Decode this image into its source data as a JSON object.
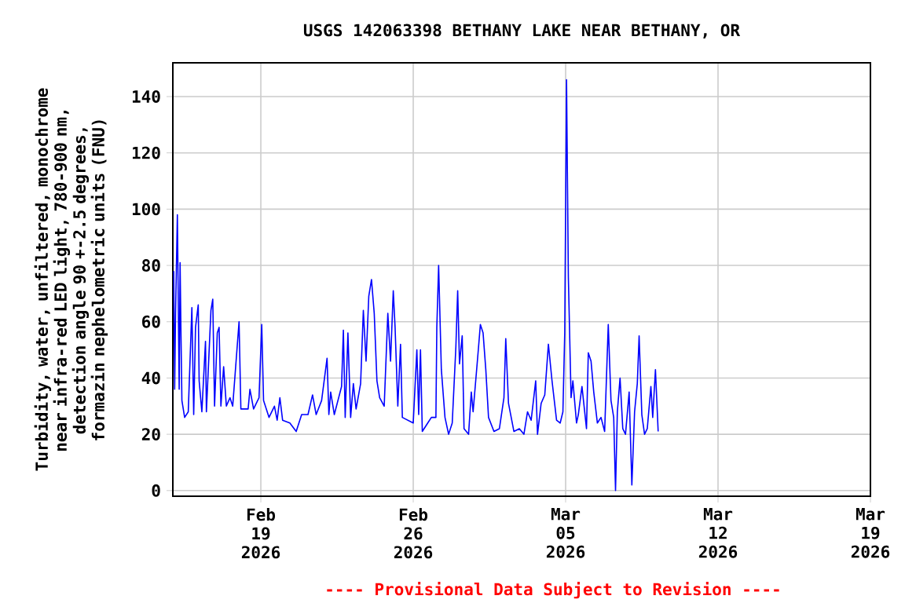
{
  "chart_data": {
    "type": "line",
    "title": "USGS 142063398 BETHANY LAKE NEAR BETHANY, OR",
    "ylabel": "Turbidity, water, unfiltered, monochrome near infra-red LED light, 780-900 nm, detection angle 90 +-2.5 degrees, formazin nephelometric units (FNU)",
    "annotations": [
      "---- Provisional Data Subject to Revision ----"
    ],
    "x": [
      "2026-02-15T00:00",
      "2026-02-15T01:00",
      "2026-02-15T02:00",
      "2026-02-15T04:00",
      "2026-02-15T06:00",
      "2026-02-15T07:00",
      "2026-02-15T08:00",
      "2026-02-15T09:00",
      "2026-02-15T12:00",
      "2026-02-15T16:00",
      "2026-02-15T20:00",
      "2026-02-15T22:00",
      "2026-02-16T00:00",
      "2026-02-16T03:00",
      "2026-02-16T04:00",
      "2026-02-16T07:00",
      "2026-02-16T11:00",
      "2026-02-16T12:00",
      "2026-02-16T17:00",
      "2026-02-16T19:00",
      "2026-02-16T21:00",
      "2026-02-17T00:00",
      "2026-02-17T02:00",
      "2026-02-17T04:00",
      "2026-02-17T07:00",
      "2026-02-17T10:00",
      "2026-02-17T14:00",
      "2026-02-17T17:00",
      "2026-02-18T00:00",
      "2026-02-18T02:00",
      "2026-02-18T10:00",
      "2026-02-18T12:00",
      "2026-02-18T16:00",
      "2026-02-18T22:00",
      "2026-02-19T01:00",
      "2026-02-19T03:00",
      "2026-02-19T09:00",
      "2026-02-19T15:00",
      "2026-02-19T18:00",
      "2026-02-19T21:00",
      "2026-02-20T00:00",
      "2026-02-20T08:00",
      "2026-02-20T15:00",
      "2026-02-20T21:00",
      "2026-02-21T04:00",
      "2026-02-21T09:00",
      "2026-02-21T13:00",
      "2026-02-21T19:00",
      "2026-02-22T01:00",
      "2026-02-22T03:00",
      "2026-02-22T05:00",
      "2026-02-22T09:00",
      "2026-02-22T17:00",
      "2026-02-22T19:00",
      "2026-02-22T21:00",
      "2026-02-23T00:00",
      "2026-02-23T03:00",
      "2026-02-23T06:00",
      "2026-02-23T09:00",
      "2026-02-23T14:00",
      "2026-02-23T17:00",
      "2026-02-23T20:00",
      "2026-02-23T23:00",
      "2026-02-24T02:00",
      "2026-02-24T05:00",
      "2026-02-24T08:00",
      "2026-02-24T11:00",
      "2026-02-24T16:00",
      "2026-02-24T20:00",
      "2026-02-24T23:00",
      "2026-02-25T02:00",
      "2026-02-25T04:00",
      "2026-02-25T07:00",
      "2026-02-25T10:00",
      "2026-02-25T12:00",
      "2026-02-25T18:00",
      "2026-02-26T00:00",
      "2026-02-26T04:00",
      "2026-02-26T06:00",
      "2026-02-26T08:00",
      "2026-02-26T10:00",
      "2026-02-26T16:00",
      "2026-02-26T20:00",
      "2026-02-27T01:00",
      "2026-02-27T02:00",
      "2026-02-27T04:00",
      "2026-02-27T07:00",
      "2026-02-27T11:00",
      "2026-02-27T15:00",
      "2026-02-27T19:00",
      "2026-02-27T23:00",
      "2026-02-28T01:00",
      "2026-02-28T03:00",
      "2026-02-28T06:00",
      "2026-02-28T08:00",
      "2026-02-28T13:00",
      "2026-02-28T16:00",
      "2026-02-28T18:00",
      "2026-03-01T00:00",
      "2026-03-01T02:00",
      "2026-03-01T05:00",
      "2026-03-01T08:00",
      "2026-03-01T11:00",
      "2026-03-01T17:00",
      "2026-03-01T23:00",
      "2026-03-02T04:00",
      "2026-03-02T06:00",
      "2026-03-02T09:00",
      "2026-03-02T12:00",
      "2026-03-02T15:00",
      "2026-03-02T21:00",
      "2026-03-03T02:00",
      "2026-03-03T06:00",
      "2026-03-03T10:00",
      "2026-03-03T15:00",
      "2026-03-03T17:00",
      "2026-03-03T21:00",
      "2026-03-04T01:00",
      "2026-03-04T05:00",
      "2026-03-04T09:00",
      "2026-03-04T14:00",
      "2026-03-04T18:00",
      "2026-03-04T21:00",
      "2026-03-04T23:00",
      "2026-03-05T01:00",
      "2026-03-05T03:00",
      "2026-03-05T06:00",
      "2026-03-05T08:00",
      "2026-03-05T12:00",
      "2026-03-05T14:00",
      "2026-03-05T18:00",
      "2026-03-05T23:00",
      "2026-03-06T01:00",
      "2026-03-06T04:00",
      "2026-03-06T07:00",
      "2026-03-06T11:00",
      "2026-03-06T15:00",
      "2026-03-06T19:00",
      "2026-03-06T23:00",
      "2026-03-07T02:00",
      "2026-03-07T05:00",
      "2026-03-07T07:00",
      "2026-03-07T09:00",
      "2026-03-07T12:00",
      "2026-03-07T15:00",
      "2026-03-07T18:00",
      "2026-03-07T22:00",
      "2026-03-08T01:00",
      "2026-03-08T04:00",
      "2026-03-08T07:00",
      "2026-03-08T09:00",
      "2026-03-08T12:00",
      "2026-03-08T15:00",
      "2026-03-08T18:00",
      "2026-03-08T22:00",
      "2026-03-09T00:00",
      "2026-03-09T03:00",
      "2026-03-09T06:00"
    ],
    "values": [
      78,
      36,
      63,
      98,
      36,
      81,
      55,
      32,
      26,
      28,
      65,
      27,
      58,
      66,
      39,
      28,
      53,
      28,
      64,
      68,
      30,
      56,
      58,
      30,
      44,
      30,
      33,
      30,
      60,
      29,
      29,
      36,
      29,
      33,
      59,
      32,
      26,
      30,
      25,
      33,
      25,
      24,
      21,
      27,
      27,
      34,
      27,
      32,
      47,
      27,
      35,
      27,
      37,
      57,
      26,
      56,
      26,
      38,
      29,
      38,
      64,
      46,
      69,
      75,
      63,
      39,
      33,
      30,
      63,
      46,
      71,
      58,
      30,
      52,
      26,
      25,
      24,
      50,
      27,
      50,
      21,
      24,
      26,
      26,
      58,
      80,
      43,
      26,
      20,
      24,
      51,
      71,
      45,
      55,
      22,
      20,
      35,
      28,
      51,
      59,
      56,
      43,
      26,
      21,
      22,
      33,
      54,
      31,
      26,
      21,
      22,
      20,
      28,
      25,
      39,
      20,
      31,
      34,
      52,
      39,
      25,
      24,
      28,
      56,
      146,
      76,
      33,
      39,
      24,
      27,
      37,
      22,
      49,
      46,
      35,
      24,
      26,
      21,
      59,
      32,
      26,
      0,
      28,
      40,
      22,
      20,
      35,
      2,
      28,
      38,
      55,
      27,
      20,
      22,
      37,
      26,
      43,
      21
    ],
    "color": "#0000ff",
    "line_style": "solid",
    "xlim": [
      "2026-02-14T23:00",
      "2026-03-19T00:00"
    ],
    "ylim": [
      -2,
      152
    ],
    "xticks": [
      {
        "value": "2026-02-19",
        "label": "Feb 19 2026"
      },
      {
        "value": "2026-02-26",
        "label": "Feb 26 2026"
      },
      {
        "value": "2026-03-05",
        "label": "Mar 05 2026"
      },
      {
        "value": "2026-03-12",
        "label": "Mar 12 2026"
      },
      {
        "value": "2026-03-19",
        "label": "Mar 19 2026"
      }
    ],
    "yticks": [
      0,
      20,
      40,
      60,
      80,
      100,
      120,
      140
    ],
    "grid": true
  }
}
